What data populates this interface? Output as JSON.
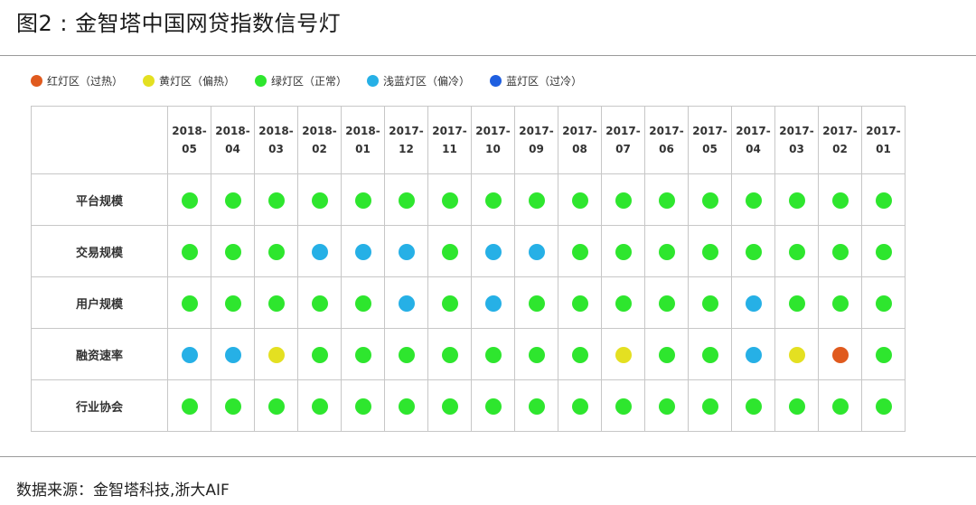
{
  "header": {
    "title": "图2 : 金智塔中国网贷指数信号灯"
  },
  "legend": [
    {
      "key": "red",
      "label": "红灯区（过热）",
      "color": "#e05a1e"
    },
    {
      "key": "yellow",
      "label": "黄灯区（偏热）",
      "color": "#e4e021"
    },
    {
      "key": "green",
      "label": "绿灯区（正常）",
      "color": "#2ee62e"
    },
    {
      "key": "light_blue",
      "label": "浅蓝灯区（偏冷）",
      "color": "#26b0e6"
    },
    {
      "key": "blue",
      "label": "蓝灯区（过冷）",
      "color": "#1f5fe0"
    }
  ],
  "chart_data": {
    "type": "table",
    "columns": [
      [
        "2018-",
        "05"
      ],
      [
        "2018-",
        "04"
      ],
      [
        "2018-",
        "03"
      ],
      [
        "2018-",
        "02"
      ],
      [
        "2018-",
        "01"
      ],
      [
        "2017-",
        "12"
      ],
      [
        "2017-",
        "11"
      ],
      [
        "2017-",
        "10"
      ],
      [
        "2017-",
        "09"
      ],
      [
        "2017-",
        "08"
      ],
      [
        "2017-",
        "07"
      ],
      [
        "2017-",
        "06"
      ],
      [
        "2017-",
        "05"
      ],
      [
        "2017-",
        "04"
      ],
      [
        "2017-",
        "03"
      ],
      [
        "2017-",
        "02"
      ],
      [
        "2017-",
        "01"
      ]
    ],
    "rows": [
      {
        "label": "平台规模",
        "signals": [
          "green",
          "green",
          "green",
          "green",
          "green",
          "green",
          "green",
          "green",
          "green",
          "green",
          "green",
          "green",
          "green",
          "green",
          "green",
          "green",
          "green"
        ]
      },
      {
        "label": "交易规模",
        "signals": [
          "green",
          "green",
          "green",
          "light_blue",
          "light_blue",
          "light_blue",
          "green",
          "light_blue",
          "light_blue",
          "green",
          "green",
          "green",
          "green",
          "green",
          "green",
          "green",
          "green"
        ]
      },
      {
        "label": "用户规模",
        "signals": [
          "green",
          "green",
          "green",
          "green",
          "green",
          "light_blue",
          "green",
          "light_blue",
          "green",
          "green",
          "green",
          "green",
          "green",
          "light_blue",
          "green",
          "green",
          "green"
        ]
      },
      {
        "label": "融资速率",
        "signals": [
          "light_blue",
          "light_blue",
          "yellow",
          "green",
          "green",
          "green",
          "green",
          "green",
          "green",
          "green",
          "yellow",
          "green",
          "green",
          "light_blue",
          "yellow",
          "red",
          "green"
        ]
      },
      {
        "label": "行业协会",
        "signals": [
          "green",
          "green",
          "green",
          "green",
          "green",
          "green",
          "green",
          "green",
          "green",
          "green",
          "green",
          "green",
          "green",
          "green",
          "green",
          "green",
          "green"
        ]
      }
    ]
  },
  "footer": {
    "source": "数据来源：金智塔科技,浙大AIF"
  }
}
